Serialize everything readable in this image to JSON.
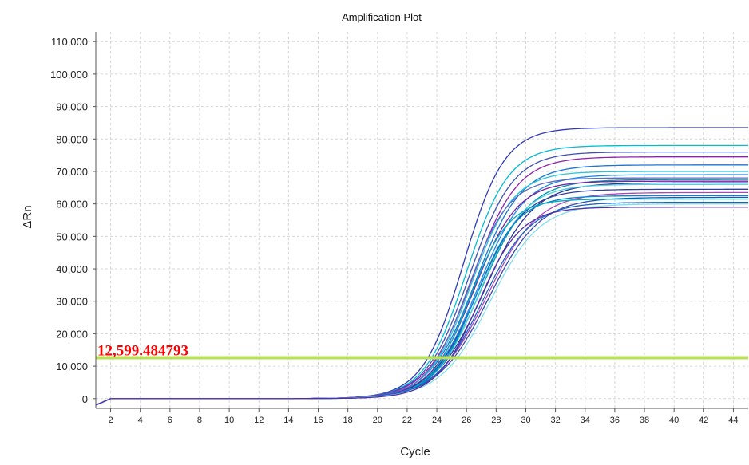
{
  "chart_data": {
    "type": "line",
    "title": "Amplification Plot",
    "xlabel": "Cycle",
    "ylabel": "ΔRn",
    "xlim": [
      1,
      45
    ],
    "ylim": [
      -3000,
      113000
    ],
    "x_ticks": [
      "2",
      "4",
      "6",
      "8",
      "10",
      "12",
      "14",
      "16",
      "18",
      "20",
      "22",
      "24",
      "26",
      "28",
      "30",
      "32",
      "34",
      "36",
      "38",
      "40",
      "42",
      "44"
    ],
    "y_ticks": [
      "0",
      "10,000",
      "20,000",
      "30,000",
      "40,000",
      "50,000",
      "60,000",
      "70,000",
      "80,000",
      "90,000",
      "100,000",
      "110,000"
    ],
    "grid": true,
    "threshold": {
      "value": 12599.484793,
      "label": "12,599.484793",
      "color": "#b8e05a"
    },
    "series_colors": [
      "#2f3bb5",
      "#00bcd4",
      "#3f51b5",
      "#8e24aa",
      "#1976d2",
      "#26c6da",
      "#1e88e5",
      "#5c6bc0",
      "#0097a7",
      "#7b1fa2",
      "#283593",
      "#4dd0e1",
      "#303f9f",
      "#ab47bc",
      "#0288d1",
      "#3949ab",
      "#00acc1",
      "#1565c0",
      "#80deea",
      "#512da8"
    ],
    "series": [
      {
        "plateau": 83500,
        "midpoint": 25.8,
        "slope": 0.72
      },
      {
        "plateau": 78000,
        "midpoint": 26.0,
        "slope": 0.7
      },
      {
        "plateau": 76000,
        "midpoint": 26.2,
        "slope": 0.68
      },
      {
        "plateau": 74500,
        "midpoint": 26.4,
        "slope": 0.66
      },
      {
        "plateau": 72000,
        "midpoint": 26.6,
        "slope": 0.65
      },
      {
        "plateau": 70000,
        "midpoint": 26.3,
        "slope": 0.7
      },
      {
        "plateau": 69000,
        "midpoint": 26.8,
        "slope": 0.64
      },
      {
        "plateau": 68000,
        "midpoint": 26.1,
        "slope": 0.72
      },
      {
        "plateau": 67500,
        "midpoint": 27.0,
        "slope": 0.62
      },
      {
        "plateau": 67000,
        "midpoint": 26.5,
        "slope": 0.68
      },
      {
        "plateau": 66500,
        "midpoint": 27.2,
        "slope": 0.6
      },
      {
        "plateau": 66000,
        "midpoint": 26.9,
        "slope": 0.66
      },
      {
        "plateau": 64500,
        "midpoint": 26.7,
        "slope": 0.65
      },
      {
        "plateau": 63500,
        "midpoint": 27.4,
        "slope": 0.58
      },
      {
        "plateau": 62500,
        "midpoint": 26.6,
        "slope": 0.7
      },
      {
        "plateau": 62000,
        "midpoint": 27.5,
        "slope": 0.58
      },
      {
        "plateau": 61500,
        "midpoint": 26.2,
        "slope": 0.75
      },
      {
        "plateau": 60500,
        "midpoint": 27.1,
        "slope": 0.62
      },
      {
        "plateau": 60000,
        "midpoint": 27.6,
        "slope": 0.6
      },
      {
        "plateau": 59000,
        "midpoint": 26.8,
        "slope": 0.7
      }
    ]
  }
}
